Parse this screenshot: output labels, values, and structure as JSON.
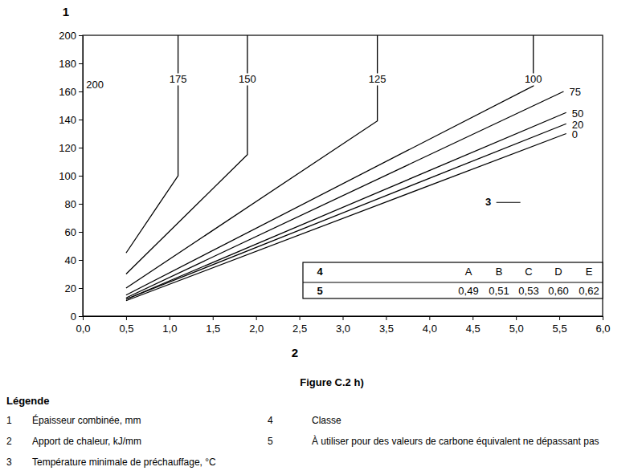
{
  "chart_data": {
    "type": "line",
    "title": "Figure C.2 h)",
    "y_label": "1",
    "x_label": "2",
    "color": "#000000",
    "xlim": [
      0,
      6
    ],
    "xticks": [
      {
        "value": 0,
        "label": "0,0"
      },
      {
        "value": 0.5,
        "label": "0,5"
      },
      {
        "value": 1,
        "label": "1,0"
      },
      {
        "value": 1.5,
        "label": "1,5"
      },
      {
        "value": 2,
        "label": "2,0"
      },
      {
        "value": 2.5,
        "label": "2,5"
      },
      {
        "value": 3,
        "label": "3,0"
      },
      {
        "value": 3.5,
        "label": "3,5"
      },
      {
        "value": 4,
        "label": "4,0"
      },
      {
        "value": 4.5,
        "label": "4,5"
      },
      {
        "value": 5,
        "label": "5,0"
      },
      {
        "value": 5.5,
        "label": "5,5"
      },
      {
        "value": 6,
        "label": "6,0"
      }
    ],
    "ylim": [
      0,
      200
    ],
    "yticks": [
      0,
      20,
      40,
      60,
      80,
      100,
      120,
      140,
      160,
      180,
      200
    ],
    "series": [
      {
        "name": "175",
        "x": [
          0.5,
          1.1,
          1.1
        ],
        "values": [
          45,
          100,
          200
        ]
      },
      {
        "name": "150",
        "x": [
          0.5,
          1.9,
          1.9
        ],
        "values": [
          30,
          115,
          200
        ]
      },
      {
        "name": "125",
        "x": [
          0.5,
          3.4,
          3.4
        ],
        "values": [
          20,
          139,
          200
        ]
      },
      {
        "name": "100",
        "x": [
          0.5,
          5.2,
          5.2
        ],
        "values": [
          15,
          164,
          200
        ]
      },
      {
        "name": "75",
        "x": [
          0.5,
          5.55
        ],
        "values": [
          13,
          160
        ]
      },
      {
        "name": "50",
        "x": [
          0.5,
          5.58
        ],
        "values": [
          12,
          145
        ]
      },
      {
        "name": "20",
        "x": [
          0.5,
          5.58
        ],
        "values": [
          12,
          137
        ]
      },
      {
        "name": "0",
        "x": [
          0.5,
          5.58
        ],
        "values": [
          11,
          130
        ]
      }
    ],
    "annotations": [
      {
        "text": "200",
        "x": 0.14,
        "y": 164
      },
      {
        "text": "3",
        "x": 4.68,
        "y": 81
      }
    ],
    "inset_table": {
      "rows": [
        [
          "4",
          "A",
          "B",
          "C",
          "D",
          "E"
        ],
        [
          "5",
          "0,49",
          "0,51",
          "0,53",
          "0,60",
          "0,62"
        ]
      ]
    },
    "notes": {
      "title": "Légende",
      "items": [
        {
          "key": "1",
          "text": "Épaisseur combinée, mm"
        },
        {
          "key": "2",
          "text": "Apport de chaleur, kJ/mm"
        },
        {
          "key": "3",
          "text": "Température minimale de préchauffage, °C"
        },
        {
          "key": "4",
          "text": "Classe"
        },
        {
          "key": "5",
          "text": "À utiliser pour des valeurs de carbone équivalent ne dépassant pas"
        }
      ]
    }
  }
}
